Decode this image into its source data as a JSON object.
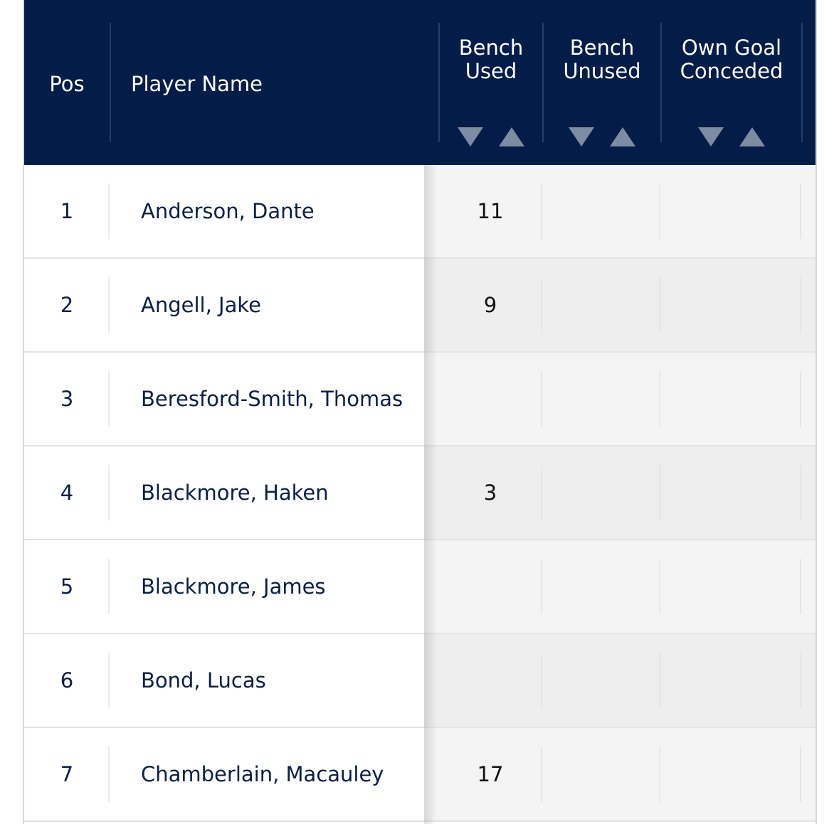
{
  "table": {
    "columns": {
      "pos": "Pos",
      "player_name": "Player Name",
      "bench_used": [
        "Bench",
        "Used"
      ],
      "bench_unused": [
        "Bench",
        "Unused"
      ],
      "own_goal_conceded": [
        "Own Goal",
        "Conceded"
      ]
    },
    "rows": [
      {
        "pos": "1",
        "name": "Anderson, Dante",
        "bench_used": "11",
        "bench_unused": "",
        "own_goal_conceded": ""
      },
      {
        "pos": "2",
        "name": "Angell, Jake",
        "bench_used": "9",
        "bench_unused": "",
        "own_goal_conceded": ""
      },
      {
        "pos": "3",
        "name": "Beresford-Smith, Thomas",
        "bench_used": "",
        "bench_unused": "",
        "own_goal_conceded": ""
      },
      {
        "pos": "4",
        "name": "Blackmore, Haken",
        "bench_used": "3",
        "bench_unused": "",
        "own_goal_conceded": ""
      },
      {
        "pos": "5",
        "name": "Blackmore, James",
        "bench_used": "",
        "bench_unused": "",
        "own_goal_conceded": ""
      },
      {
        "pos": "6",
        "name": "Bond, Lucas",
        "bench_used": "",
        "bench_unused": "",
        "own_goal_conceded": ""
      },
      {
        "pos": "7",
        "name": "Chamberlain, Macauley",
        "bench_used": "17",
        "bench_unused": "",
        "own_goal_conceded": ""
      }
    ]
  },
  "icons": {
    "sort_descending": "triangle-down-icon",
    "sort_ascending": "triangle-up-icon"
  },
  "colors": {
    "header_bg": "#031d48",
    "header_text": "#ffffff",
    "sort_icon": "#7d8ba3",
    "body_text": "#0a1f44",
    "stats_bg_odd": "#f4f4f4",
    "stats_bg_even": "#eeeeee"
  }
}
